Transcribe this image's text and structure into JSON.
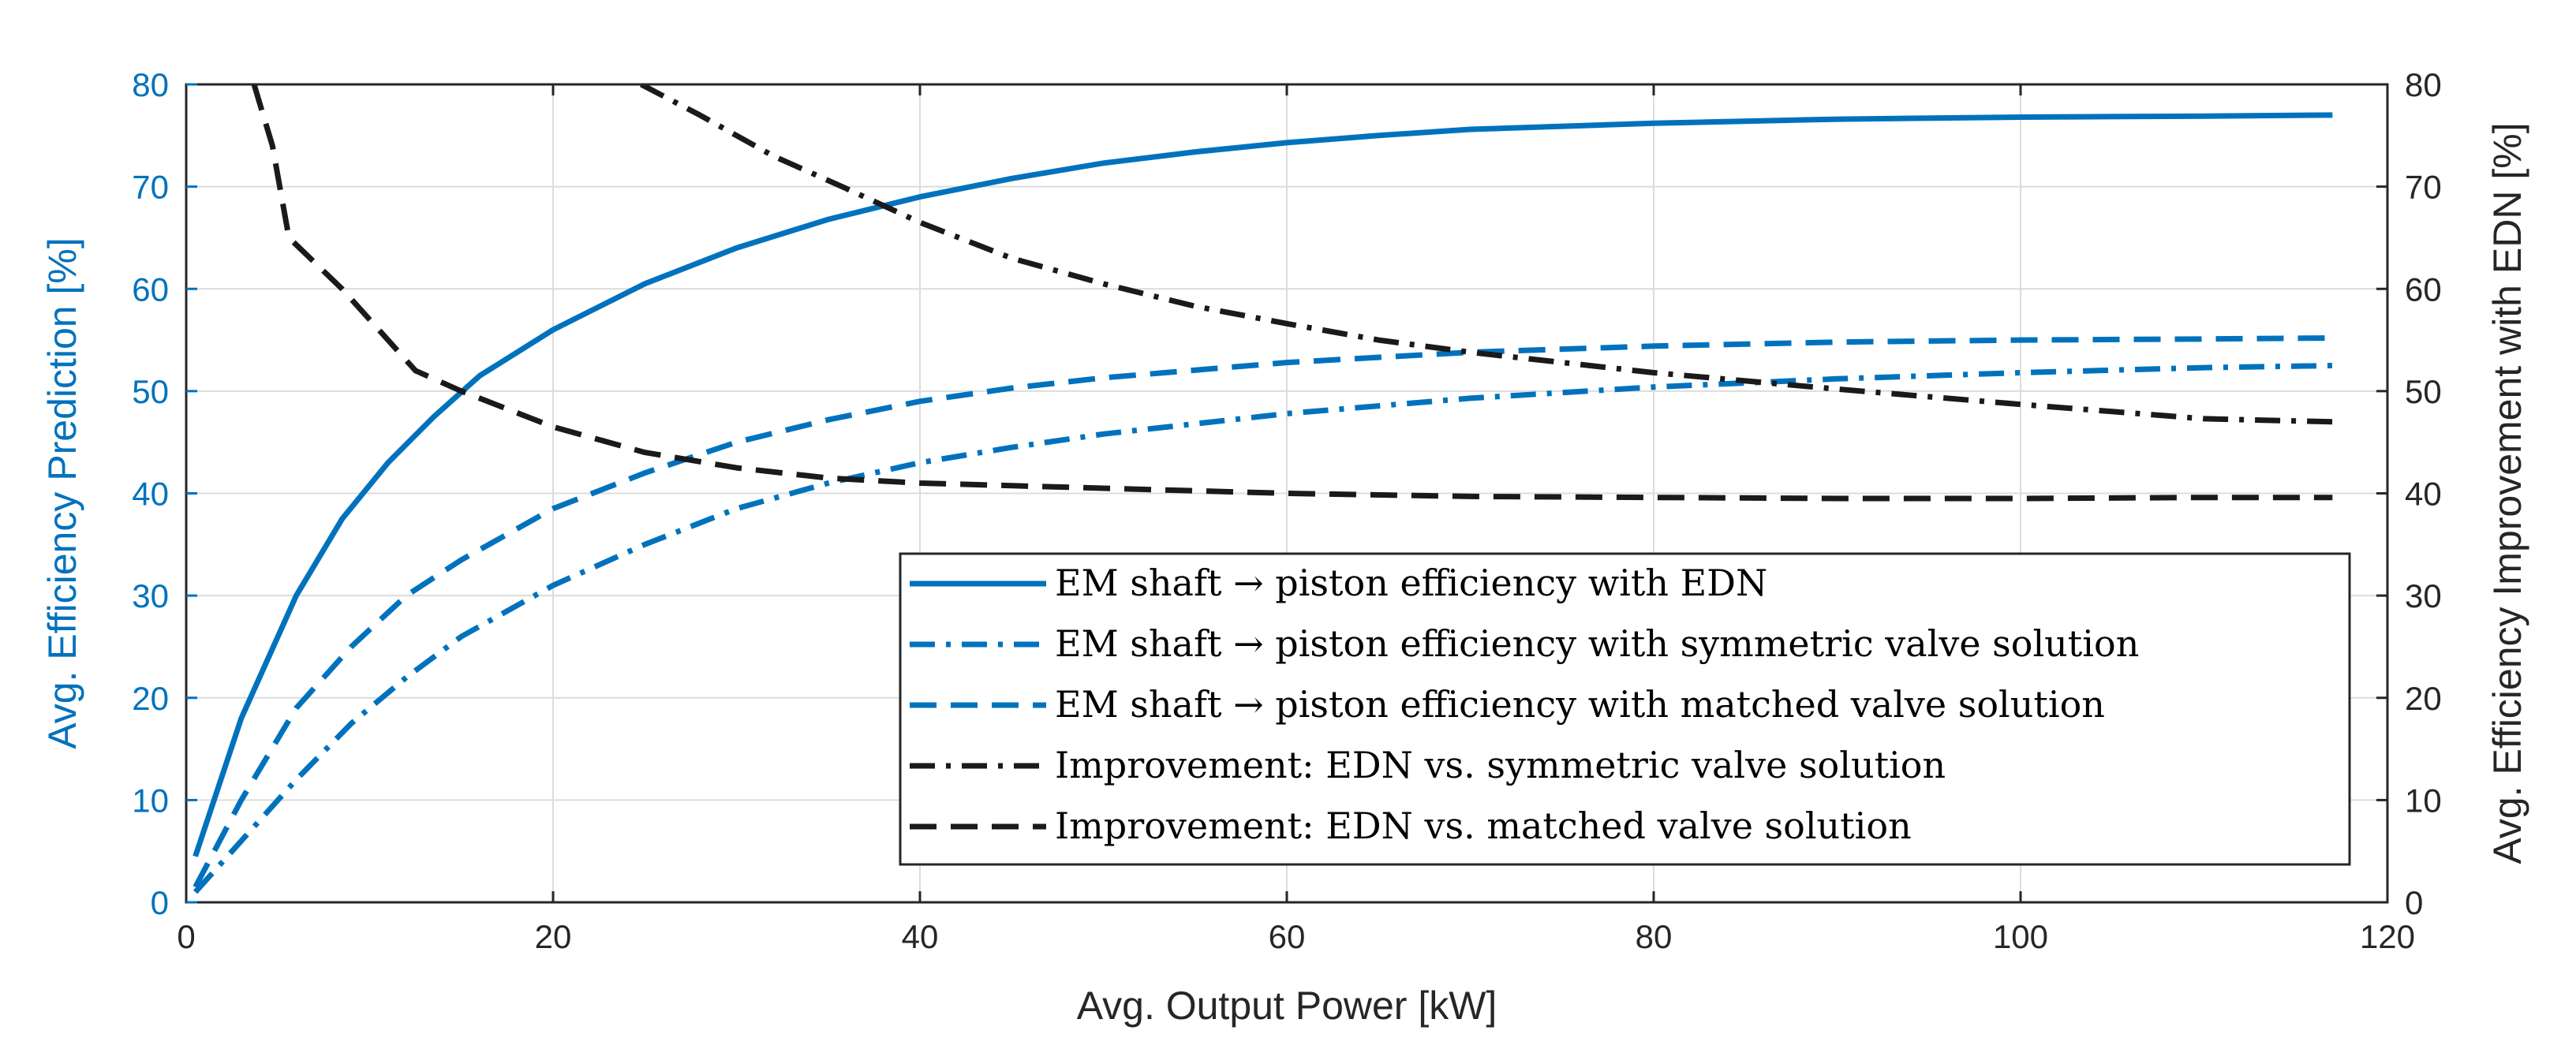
{
  "chart_data": {
    "type": "line",
    "title": "",
    "xlabel": "Avg. Output Power [kW]",
    "ylabel_left": "Avg. Efficiency Prediction [%]",
    "ylabel_right": "Avg. Efficiency Improvement with EDN [%]",
    "xlim": [
      0,
      120
    ],
    "ylim_left": [
      0,
      80
    ],
    "ylim_right": [
      0,
      80
    ],
    "x_ticks": [
      "0",
      "20",
      "40",
      "60",
      "80",
      "100",
      "120"
    ],
    "y_ticks_left": [
      "0",
      "10",
      "20",
      "30",
      "40",
      "50",
      "60",
      "70",
      "80"
    ],
    "y_ticks_right": [
      "0",
      "10",
      "20",
      "30",
      "40",
      "50",
      "60",
      "70",
      "80"
    ],
    "grid": true,
    "legend_location": "bottom-right",
    "colors": {
      "blue": "#0072BD",
      "black": "#1A1A1A"
    },
    "series": [
      {
        "name": "EM shaft → piston efficiency with EDN",
        "axis": "left",
        "color": "#0072BD",
        "style": "solid",
        "points": [
          [
            0.5,
            4.5
          ],
          [
            3,
            18
          ],
          [
            6,
            30
          ],
          [
            8.5,
            37.5
          ],
          [
            11,
            43
          ],
          [
            13.5,
            47.5
          ],
          [
            16,
            51.5
          ],
          [
            20,
            56
          ],
          [
            25,
            60.5
          ],
          [
            30,
            64
          ],
          [
            35,
            66.8
          ],
          [
            40,
            69
          ],
          [
            45,
            70.8
          ],
          [
            50,
            72.3
          ],
          [
            55,
            73.4
          ],
          [
            60,
            74.3
          ],
          [
            65,
            75
          ],
          [
            70,
            75.6
          ],
          [
            80,
            76.2
          ],
          [
            90,
            76.6
          ],
          [
            100,
            76.8
          ],
          [
            110,
            76.9
          ],
          [
            117,
            77
          ]
        ]
      },
      {
        "name": "EM shaft → piston efficiency with symmetric valve solution",
        "axis": "left",
        "color": "#0072BD",
        "style": "dashdot",
        "points": [
          [
            0.5,
            1
          ],
          [
            3,
            6
          ],
          [
            6,
            12
          ],
          [
            9,
            17.5
          ],
          [
            12,
            22
          ],
          [
            15,
            26
          ],
          [
            20,
            31
          ],
          [
            25,
            35
          ],
          [
            30,
            38.5
          ],
          [
            35,
            41
          ],
          [
            40,
            43
          ],
          [
            45,
            44.5
          ],
          [
            50,
            45.8
          ],
          [
            60,
            47.8
          ],
          [
            70,
            49.3
          ],
          [
            80,
            50.4
          ],
          [
            90,
            51.2
          ],
          [
            100,
            51.8
          ],
          [
            110,
            52.3
          ],
          [
            117,
            52.5
          ]
        ]
      },
      {
        "name": "EM shaft → piston efficiency with matched valve solution",
        "axis": "left",
        "color": "#0072BD",
        "style": "dashed",
        "points": [
          [
            0.5,
            1.5
          ],
          [
            3,
            10
          ],
          [
            6,
            19
          ],
          [
            9,
            25
          ],
          [
            12,
            30
          ],
          [
            15,
            33.5
          ],
          [
            20,
            38.5
          ],
          [
            25,
            42
          ],
          [
            30,
            45
          ],
          [
            35,
            47.2
          ],
          [
            40,
            49
          ],
          [
            45,
            50.3
          ],
          [
            50,
            51.3
          ],
          [
            60,
            52.8
          ],
          [
            70,
            53.8
          ],
          [
            80,
            54.4
          ],
          [
            90,
            54.8
          ],
          [
            100,
            55
          ],
          [
            110,
            55.1
          ],
          [
            117,
            55.2
          ]
        ]
      },
      {
        "name": "Improvement: EDN vs. symmetric valve solution",
        "axis": "right",
        "color": "#1A1A1A",
        "style": "dashdot",
        "points": [
          [
            24.8,
            80
          ],
          [
            28,
            77
          ],
          [
            32,
            73
          ],
          [
            36,
            69.8
          ],
          [
            40,
            66.5
          ],
          [
            45,
            63
          ],
          [
            50,
            60.5
          ],
          [
            55,
            58.3
          ],
          [
            60,
            56.6
          ],
          [
            65,
            55
          ],
          [
            70,
            53.8
          ],
          [
            80,
            51.8
          ],
          [
            90,
            50.2
          ],
          [
            100,
            48.7
          ],
          [
            105,
            48
          ],
          [
            110,
            47.3
          ],
          [
            117,
            47
          ]
        ]
      },
      {
        "name": "Improvement: EDN vs. matched valve solution",
        "axis": "right",
        "color": "#1A1A1A",
        "style": "dashed",
        "points": [
          [
            3.7,
            80
          ],
          [
            4.7,
            74
          ],
          [
            5.6,
            65
          ],
          [
            8.5,
            60
          ],
          [
            12.5,
            52
          ],
          [
            15,
            50
          ],
          [
            20,
            46.5
          ],
          [
            25,
            44
          ],
          [
            30,
            42.5
          ],
          [
            35,
            41.5
          ],
          [
            40,
            41
          ],
          [
            50,
            40.5
          ],
          [
            60,
            40
          ],
          [
            70,
            39.7
          ],
          [
            80,
            39.6
          ],
          [
            90,
            39.5
          ],
          [
            100,
            39.5
          ],
          [
            110,
            39.6
          ],
          [
            117,
            39.6
          ]
        ]
      }
    ]
  }
}
